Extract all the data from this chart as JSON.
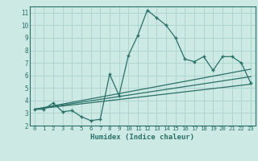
{
  "title": "",
  "xlabel": "Humidex (Indice chaleur)",
  "xlim": [
    -0.5,
    23.5
  ],
  "ylim": [
    2,
    11.5
  ],
  "xticks": [
    0,
    1,
    2,
    3,
    4,
    5,
    6,
    7,
    8,
    9,
    10,
    11,
    12,
    13,
    14,
    15,
    16,
    17,
    18,
    19,
    20,
    21,
    22,
    23
  ],
  "yticks": [
    2,
    3,
    4,
    5,
    6,
    7,
    8,
    9,
    10,
    11
  ],
  "bg_color": "#cce9e4",
  "grid_color": "#b0d4ce",
  "line_color": "#2a7068",
  "line1_x": [
    0,
    1,
    2,
    3,
    4,
    5,
    6,
    7,
    8,
    9,
    10,
    11,
    12,
    13,
    14,
    15,
    16,
    17,
    18,
    19,
    20,
    21,
    22,
    23
  ],
  "line1_y": [
    3.3,
    3.3,
    3.8,
    3.1,
    3.2,
    2.7,
    2.4,
    2.5,
    6.1,
    4.4,
    7.6,
    9.2,
    11.2,
    10.6,
    10.0,
    9.0,
    7.3,
    7.1,
    7.5,
    6.4,
    7.5,
    7.5,
    7.0,
    5.4
  ],
  "line2_x": [
    0,
    23
  ],
  "line2_y": [
    3.3,
    5.9
  ],
  "line3_x": [
    0,
    23
  ],
  "line3_y": [
    3.3,
    6.5
  ],
  "line4_x": [
    0,
    23
  ],
  "line4_y": [
    3.3,
    5.3
  ]
}
